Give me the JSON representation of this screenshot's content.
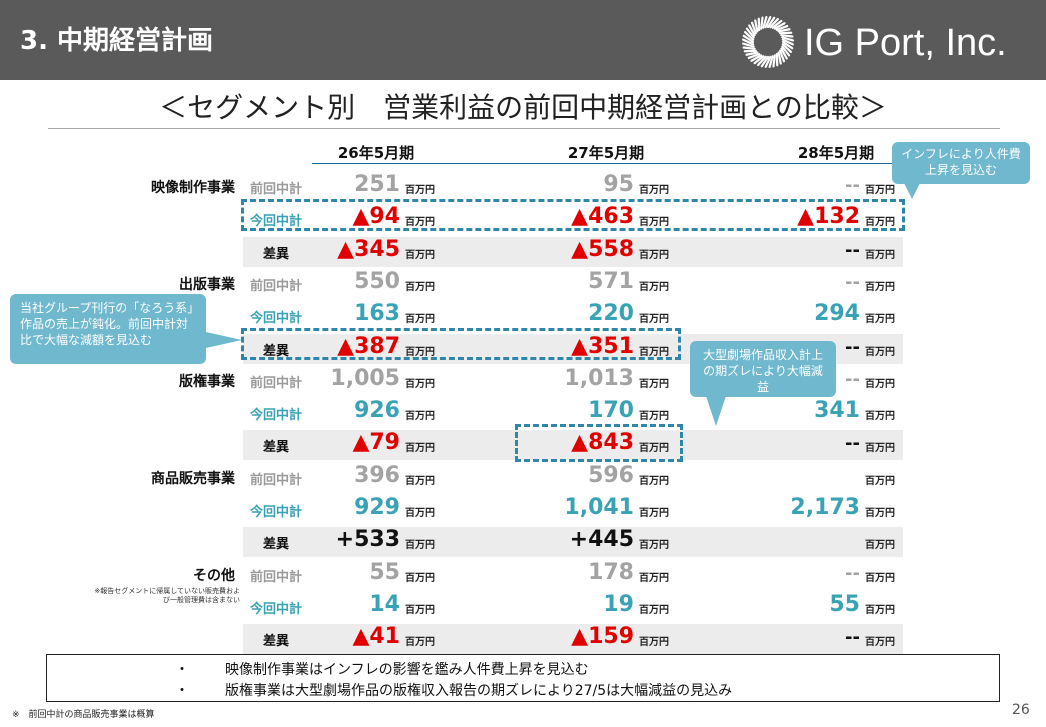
{
  "header": {
    "title": "3. 中期経営計画",
    "logo_text": "IG Port, Inc."
  },
  "subtitle": "＜セグメント別　営業利益の前回中期経営計画との比較＞",
  "years": [
    "26年5月期",
    "27年5月期",
    "28年5月期"
  ],
  "unit": "百万円",
  "row_labels": {
    "prev": "前回中計",
    "cur": "今回中計",
    "diff": "差異"
  },
  "segments": [
    {
      "name": "映像制作事業",
      "prev": [
        "251",
        "95",
        "--"
      ],
      "cur": [
        "▲94",
        "▲463",
        "▲132"
      ],
      "diff": [
        "▲345",
        "▲558",
        "--"
      ]
    },
    {
      "name": "出版事業",
      "prev": [
        "550",
        "571",
        "--"
      ],
      "cur": [
        "163",
        "220",
        "294"
      ],
      "diff": [
        "▲387",
        "▲351",
        "--"
      ]
    },
    {
      "name": "版権事業",
      "prev": [
        "1,005",
        "1,013",
        "--"
      ],
      "cur": [
        "926",
        "170",
        "341"
      ],
      "diff": [
        "▲79",
        "▲843",
        "--"
      ]
    },
    {
      "name": "商品販売事業",
      "prev": [
        "396",
        "596",
        ""
      ],
      "cur": [
        "929",
        "1,041",
        "2,173"
      ],
      "diff": [
        "+533",
        "+445",
        ""
      ]
    },
    {
      "name": "その他",
      "note": "※報告セグメントに帰属していない販売費および一般管理費は含まない",
      "prev": [
        "55",
        "178",
        "--"
      ],
      "cur": [
        "14",
        "19",
        "55"
      ],
      "diff": [
        "▲41",
        "▲159",
        "--"
      ]
    }
  ],
  "callouts": {
    "inflation": "インフレにより人件費上昇を見込む",
    "publishing": "当社グループ刊行の「なろう系」作品の売上が鈍化。前回中計対比で大幅な減額を見込む",
    "theatrical": "大型劇場作品収入計上の期ズレにより大幅減益"
  },
  "summary": {
    "bullet": "・",
    "items": [
      "映像制作事業はインフレの影響を鑑み人件費上昇を見込む",
      "版権事業は大型劇場作品の版権収入報告の期ズレにより27/5は大幅減益の見込み"
    ]
  },
  "footnote": "※　前回中計の商品販売事業は概算",
  "page_number": "26",
  "colors": {
    "header_bg": "#5a5a5a",
    "current_plan": "#39a3b5",
    "negative": "#e00000",
    "previous_plan": "#a3a3a3",
    "callout": "#6fb8ce",
    "dashed_box": "#2f86a8"
  }
}
